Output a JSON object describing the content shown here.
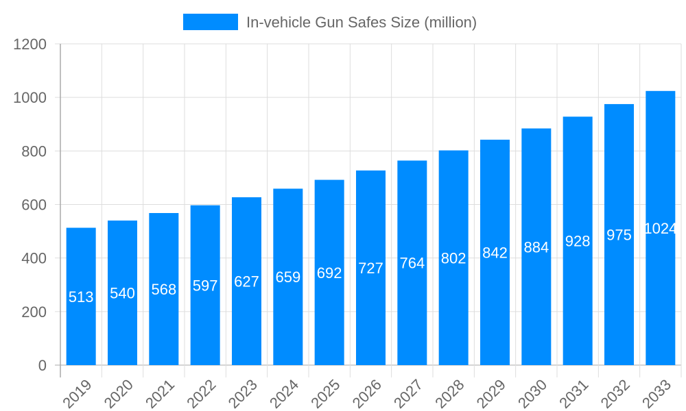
{
  "chart_data": {
    "type": "bar",
    "title": "",
    "xlabel": "",
    "ylabel": "",
    "categories": [
      "2019",
      "2020",
      "2021",
      "2022",
      "2023",
      "2024",
      "2025",
      "2026",
      "2027",
      "2028",
      "2029",
      "2030",
      "2031",
      "2032",
      "2033"
    ],
    "series": [
      {
        "name": "In-vehicle Gun Safes Size (million)",
        "values": [
          513,
          540,
          568,
          597,
          627,
          659,
          692,
          727,
          764,
          802,
          842,
          884,
          928,
          975,
          1024
        ],
        "color": "#008cff"
      }
    ],
    "ylim": [
      0,
      1200
    ],
    "yticks": [
      0,
      200,
      400,
      600,
      800,
      1000,
      1200
    ],
    "grid": true,
    "legend": "top-center",
    "data_labels": true
  }
}
